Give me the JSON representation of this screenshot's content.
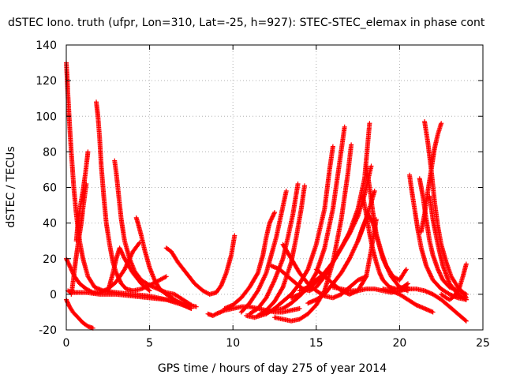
{
  "chart_data": {
    "type": "scatter",
    "title": "dSTEC Iono. truth (ufpr, Lon=310, Lat=-25, h=927): STEC-STEC_elemax in phase cont",
    "xlabel": "GPS time / hours of day 275 of year 2014",
    "ylabel": "dSTEC  / TECUs",
    "xlim": [
      0,
      25
    ],
    "ylim": [
      -20,
      140
    ],
    "xticks": [
      0,
      5,
      10,
      15,
      20,
      25
    ],
    "yticks": [
      -20,
      0,
      20,
      40,
      60,
      80,
      100,
      120,
      140
    ],
    "grid": true,
    "marker": "plus",
    "color": "#ff0000",
    "series": [
      {
        "x": [
          0.0,
          0.2,
          0.4,
          0.6,
          0.8,
          1.0,
          1.3,
          1.6
        ],
        "y": [
          -3,
          -7,
          -10,
          -12,
          -14,
          -16,
          -18,
          -19
        ]
      },
      {
        "x": [
          0.0,
          0.05,
          0.1,
          0.2,
          0.3,
          0.45,
          0.6,
          0.8,
          1.0,
          1.3,
          1.7,
          2.2,
          3.0,
          4.0,
          5.0,
          6.0,
          7.0,
          7.5
        ],
        "y": [
          130,
          122,
          112,
          95,
          80,
          60,
          45,
          30,
          20,
          10,
          4,
          2,
          1,
          0,
          -1,
          -3,
          -6,
          -8
        ]
      },
      {
        "x": [
          0.0,
          0.15,
          0.3,
          0.5,
          0.8,
          1.2,
          1.6,
          2.0,
          2.5,
          3.0,
          3.5,
          4.0,
          4.4
        ],
        "y": [
          20,
          17,
          14,
          10,
          6,
          3,
          1,
          1,
          3,
          7,
          14,
          24,
          29
        ]
      },
      {
        "x": [
          0.3,
          0.35,
          0.45,
          0.55,
          0.7,
          0.9,
          1.0,
          1.2
        ],
        "y": [
          0,
          3,
          10,
          18,
          28,
          40,
          48,
          62
        ]
      },
      {
        "x": [
          0.6,
          0.7,
          0.85,
          1.0,
          1.15,
          1.3
        ],
        "y": [
          30,
          40,
          50,
          58,
          68,
          80
        ]
      },
      {
        "x": [
          0.1,
          0.3,
          0.7,
          1.2,
          2.0,
          3.0,
          4.0,
          5.0,
          6.0,
          7.0,
          7.8
        ],
        "y": [
          2,
          1,
          1,
          1,
          0,
          0,
          -1,
          -2,
          -3,
          -5,
          -7
        ]
      },
      {
        "x": [
          1.8,
          1.9,
          2.0,
          2.1,
          2.25,
          2.4,
          2.6,
          2.8,
          3.0,
          3.3,
          3.6,
          4.0,
          4.5,
          5.2,
          6.0
        ],
        "y": [
          108,
          100,
          88,
          72,
          55,
          40,
          28,
          18,
          12,
          6,
          3,
          2,
          3,
          6,
          10
        ]
      },
      {
        "x": [
          2.9,
          3.0,
          3.15,
          3.3,
          3.5,
          3.8,
          4.1,
          4.5,
          5.0,
          5.5,
          6.0,
          6.5,
          7.0,
          7.5
        ],
        "y": [
          75,
          68,
          55,
          42,
          30,
          20,
          13,
          8,
          5,
          3,
          1,
          0,
          -3,
          -6
        ]
      },
      {
        "x": [
          2.5,
          2.6,
          2.8,
          3.0,
          3.2,
          3.5,
          4.0,
          4.5,
          5.0
        ],
        "y": [
          2,
          5,
          12,
          20,
          26,
          20,
          12,
          6,
          2
        ]
      },
      {
        "x": [
          4.2,
          4.3,
          4.5,
          4.7,
          5.0,
          5.3,
          5.6,
          6.0,
          6.5,
          7.0,
          7.5
        ],
        "y": [
          43,
          40,
          33,
          25,
          15,
          8,
          3,
          0,
          -3,
          -6,
          -8
        ]
      },
      {
        "x": [
          6.0,
          6.3,
          6.7,
          7.2,
          7.7,
          8.2,
          8.6,
          9.0,
          9.3,
          9.6,
          9.9,
          10.1
        ],
        "y": [
          26,
          24,
          18,
          12,
          6,
          2,
          0,
          1,
          5,
          12,
          22,
          33
        ]
      },
      {
        "x": [
          8.5,
          8.8,
          9.0,
          9.5,
          10.0,
          10.5,
          11.0,
          11.5,
          12.0,
          12.5,
          13.0,
          13.5,
          14.0
        ],
        "y": [
          -11,
          -12,
          -11,
          -9,
          -8,
          -7,
          -7,
          -8,
          -9,
          -10,
          -10,
          -9,
          -8
        ]
      },
      {
        "x": [
          9.5,
          10.0,
          10.5,
          11.0,
          11.5,
          11.8,
          12.0,
          12.2,
          12.5
        ],
        "y": [
          -8,
          -6,
          -2,
          4,
          12,
          22,
          32,
          40,
          46
        ]
      },
      {
        "x": [
          10.5,
          11.0,
          11.5,
          12.0,
          12.3,
          12.6,
          12.9,
          13.2
        ],
        "y": [
          -10,
          -5,
          2,
          12,
          22,
          32,
          45,
          58
        ]
      },
      {
        "x": [
          11.0,
          11.5,
          12.0,
          12.5,
          13.0,
          13.3,
          13.6,
          13.9
        ],
        "y": [
          -11,
          -8,
          -2,
          8,
          20,
          32,
          45,
          62
        ]
      },
      {
        "x": [
          11.5,
          12.0,
          12.5,
          13.0,
          13.5,
          13.8,
          14.1,
          14.3
        ],
        "y": [
          -12,
          -9,
          -4,
          4,
          18,
          32,
          48,
          61
        ]
      },
      {
        "x": [
          10.8,
          11.3,
          12.0,
          12.5,
          13.0,
          13.5,
          14.0,
          14.5,
          15.0,
          15.5,
          15.8,
          16.0
        ],
        "y": [
          -12,
          -13,
          -11,
          -8,
          -4,
          0,
          6,
          14,
          28,
          48,
          70,
          83
        ]
      },
      {
        "x": [
          12.0,
          12.5,
          13.0,
          13.5,
          14.0,
          14.5,
          15.0,
          15.5,
          16.0,
          16.4,
          16.7
        ],
        "y": [
          -10,
          -9,
          -8,
          -5,
          -1,
          4,
          12,
          26,
          48,
          74,
          94
        ]
      },
      {
        "x": [
          12.5,
          13.0,
          13.5,
          14.0,
          14.5,
          15.0,
          15.5,
          16.0,
          16.5,
          16.9,
          17.1
        ],
        "y": [
          -13,
          -14,
          -15,
          -14,
          -11,
          -6,
          2,
          18,
          42,
          68,
          84
        ]
      },
      {
        "x": [
          12.3,
          12.8,
          13.3,
          13.8,
          14.2,
          14.6,
          15.0,
          15.5,
          16.0
        ],
        "y": [
          16,
          14,
          10,
          6,
          3,
          2,
          4,
          10,
          18
        ]
      },
      {
        "x": [
          13.0,
          13.5,
          14.0,
          14.5,
          15.0,
          15.5,
          16.0,
          16.5,
          17.0,
          17.5,
          18.0
        ],
        "y": [
          28,
          20,
          12,
          6,
          2,
          -1,
          -2,
          0,
          4,
          8,
          10
        ]
      },
      {
        "x": [
          13.5,
          14.0,
          14.5,
          15.0,
          15.5,
          16.0,
          16.5,
          17.0,
          17.5,
          17.9,
          18.2
        ],
        "y": [
          -2,
          0,
          3,
          7,
          12,
          18,
          26,
          35,
          48,
          65,
          96
        ]
      },
      {
        "x": [
          14.0,
          14.5,
          15.0,
          15.5,
          16.0,
          16.5,
          17.0,
          17.5,
          17.9,
          18.3
        ],
        "y": [
          2,
          4,
          8,
          12,
          18,
          26,
          34,
          44,
          56,
          72
        ]
      },
      {
        "x": [
          14.5,
          15.0,
          15.5,
          16.0,
          16.5,
          17.0,
          17.5,
          18.0,
          18.5
        ],
        "y": [
          -5,
          -3,
          0,
          6,
          12,
          20,
          30,
          42,
          58
        ]
      },
      {
        "x": [
          15.0,
          15.5,
          16.0,
          16.5,
          17.0,
          17.5,
          18.0,
          18.3,
          18.6
        ],
        "y": [
          14,
          10,
          6,
          2,
          0,
          2,
          10,
          25,
          42
        ]
      },
      {
        "x": [
          16.0,
          16.5,
          17.0,
          17.5,
          18.0,
          18.5,
          19.0,
          19.5,
          20.0,
          20.5
        ],
        "y": [
          4,
          3,
          2,
          2,
          3,
          3,
          2,
          1,
          2,
          4
        ]
      },
      {
        "x": [
          17.8,
          18.0,
          18.2,
          18.4,
          18.6,
          18.8,
          19.0,
          19.4,
          19.8,
          20.2,
          20.5
        ],
        "y": [
          55,
          45,
          34,
          25,
          18,
          12,
          8,
          4,
          3,
          4,
          6
        ]
      },
      {
        "x": [
          18.0,
          18.2,
          18.4,
          18.6,
          18.9,
          19.2,
          19.6,
          20.0,
          20.4
        ],
        "y": [
          72,
          60,
          46,
          34,
          24,
          16,
          10,
          8,
          14
        ]
      },
      {
        "x": [
          17.5,
          17.8,
          18.1,
          18.4,
          18.7,
          19.0,
          19.5,
          20.0,
          20.5
        ],
        "y": [
          30,
          38,
          45,
          40,
          30,
          20,
          10,
          4,
          2
        ]
      },
      {
        "x": [
          19.0,
          19.5,
          20.0,
          20.5,
          21.0,
          21.5,
          22.0
        ],
        "y": [
          3,
          2,
          0,
          -3,
          -6,
          -8,
          -10
        ]
      },
      {
        "x": [
          20.6,
          20.7,
          20.9,
          21.1,
          21.3,
          21.6,
          22.0,
          22.5,
          23.0,
          23.5,
          24.0
        ],
        "y": [
          67,
          60,
          48,
          36,
          26,
          16,
          8,
          3,
          0,
          -2,
          -3
        ]
      },
      {
        "x": [
          21.2,
          21.4,
          21.6,
          21.8,
          22.0,
          22.3,
          22.6,
          23.0,
          23.5,
          23.8,
          24.0
        ],
        "y": [
          65,
          55,
          42,
          30,
          22,
          14,
          8,
          4,
          2,
          1,
          0
        ]
      },
      {
        "x": [
          21.3,
          21.5,
          21.7,
          21.9,
          22.1,
          22.3,
          22.5
        ],
        "y": [
          35,
          45,
          58,
          70,
          82,
          90,
          96
        ]
      },
      {
        "x": [
          21.5,
          21.7,
          21.9,
          22.1,
          22.3,
          22.5,
          22.8,
          23.1,
          23.5,
          23.8,
          24.0
        ],
        "y": [
          97,
          85,
          70,
          52,
          38,
          28,
          18,
          10,
          4,
          1,
          -2
        ]
      },
      {
        "x": [
          21.8,
          22.0,
          22.3,
          22.6,
          23.0,
          23.5,
          24.0
        ],
        "y": [
          55,
          42,
          28,
          16,
          6,
          0,
          -3
        ]
      },
      {
        "x": [
          20.0,
          20.5,
          21.0,
          21.5,
          22.0,
          22.5,
          23.0,
          23.5,
          24.0
        ],
        "y": [
          2,
          3,
          3,
          2,
          0,
          -3,
          -7,
          -11,
          -15
        ]
      },
      {
        "x": [
          22.5,
          22.8,
          23.0,
          23.3,
          23.6,
          23.8,
          24.0
        ],
        "y": [
          0,
          -2,
          -3,
          -1,
          4,
          10,
          17
        ]
      }
    ]
  }
}
